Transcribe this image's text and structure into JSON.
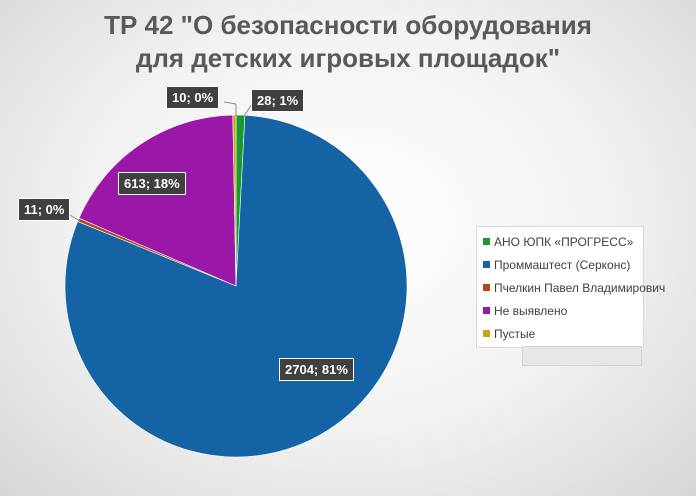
{
  "chart_data": {
    "type": "pie",
    "title_lines": [
      "ТР 42 \"О безопасности оборудования",
      "для детских игровых площадок\""
    ],
    "slices": [
      {
        "name": "АНО ЮПК «ПРОГРЕСС»",
        "value": 28,
        "percent": "1%",
        "label": "28; 1%",
        "color": "#1a9a2e"
      },
      {
        "name": "Проммаштест (Серконс)",
        "value": 2704,
        "percent": "81%",
        "label": "2704; 81%",
        "color": "#1464a5"
      },
      {
        "name": "Пчелкин Павел Владимирович",
        "value": 11,
        "percent": "0%",
        "label": "11; 0%",
        "color": "#b5451b"
      },
      {
        "name": "Не выявлено",
        "value": 613,
        "percent": "18%",
        "label": "613; 18%",
        "color": "#9b17a8"
      },
      {
        "name": "Пустые",
        "value": 10,
        "percent": "0%",
        "label": "10; 0%",
        "color": "#c9a416"
      }
    ],
    "legend_position": "right"
  }
}
